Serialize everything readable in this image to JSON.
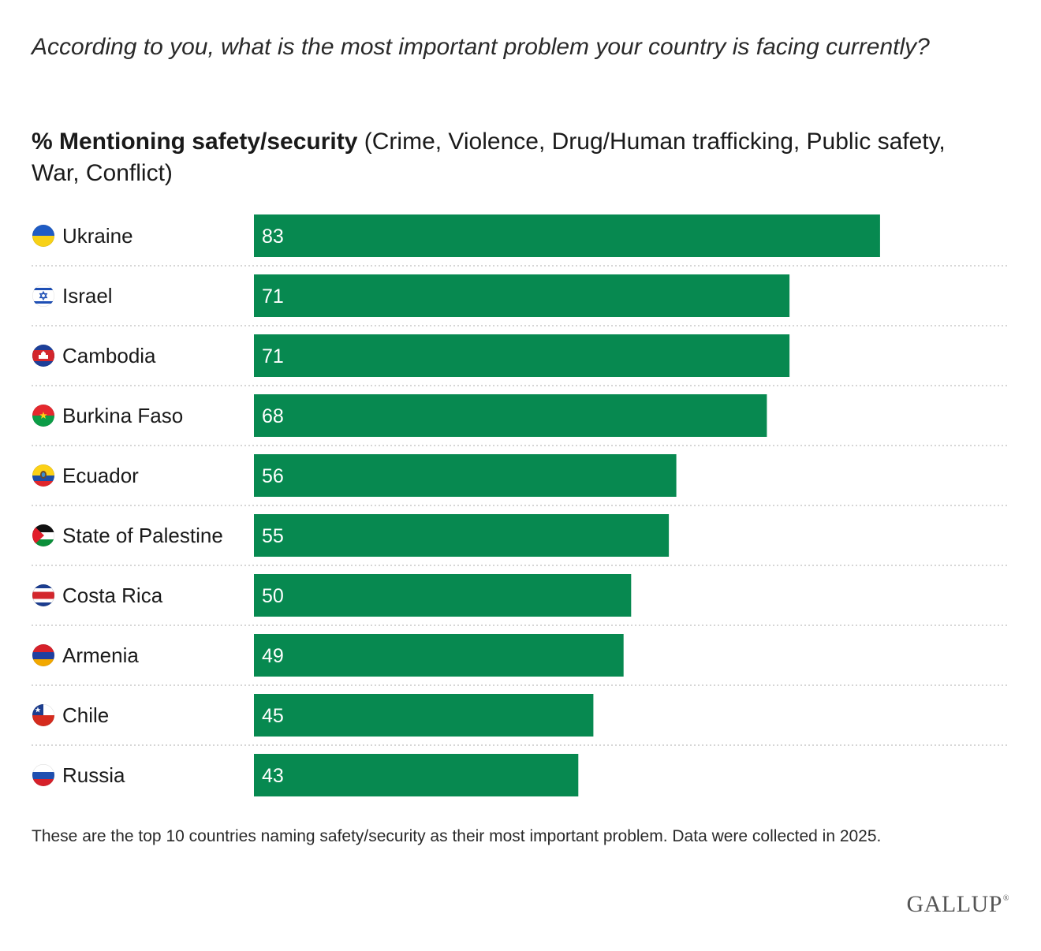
{
  "question": "According to you, what is the most important problem your country is facing currently?",
  "subtitle": {
    "bold": "% Mentioning safety/security",
    "rest": " (Crime, Violence, Drug/Human trafficking, Public safety, War, Conflict)"
  },
  "chart_data": {
    "type": "bar",
    "orientation": "horizontal",
    "title": "% Mentioning safety/security (Crime, Violence, Drug/Human trafficking, Public safety, War, Conflict)",
    "categories": [
      "Ukraine",
      "Israel",
      "Cambodia",
      "Burkina Faso",
      "Ecuador",
      "State of Palestine",
      "Costa Rica",
      "Armenia",
      "Chile",
      "Russia"
    ],
    "values": [
      83,
      71,
      71,
      68,
      56,
      55,
      50,
      49,
      45,
      43
    ],
    "flag_icons": [
      "ukraine-flag-icon",
      "israel-flag-icon",
      "cambodia-flag-icon",
      "burkina-faso-flag-icon",
      "ecuador-flag-icon",
      "palestine-flag-icon",
      "costa-rica-flag-icon",
      "armenia-flag-icon",
      "chile-flag-icon",
      "russia-flag-icon"
    ],
    "xlim": [
      0,
      100
    ],
    "xlabel": "",
    "ylabel": "",
    "grid": false,
    "bar_color": "#078950"
  },
  "footnote": "These are the top 10 countries naming safety/security as their most important problem. Data were collected in 2025.",
  "logo": {
    "name": "GALLUP",
    "mark": "®"
  }
}
